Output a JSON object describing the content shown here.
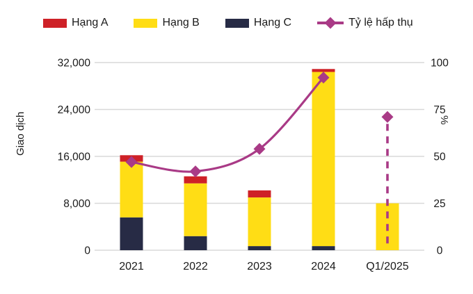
{
  "legend": {
    "items": [
      {
        "label": "Hạng A",
        "color": "#ce2127",
        "type": "box"
      },
      {
        "label": "Hạng B",
        "color": "#ffdd15",
        "type": "box"
      },
      {
        "label": "Hạng C",
        "color": "#272b45",
        "type": "box"
      },
      {
        "label": "Tỷ lệ hấp thụ",
        "color": "#a93a86",
        "type": "line-diamond"
      }
    ]
  },
  "chart_data": {
    "type": "bar",
    "subtype": "stacked-bars-with-percentage-line",
    "categories": [
      "2021",
      "2022",
      "2023",
      "2024",
      "Q1/2025"
    ],
    "bar_series": [
      {
        "name": "Hạng C",
        "color": "#272b45",
        "values": [
          5600,
          2400,
          700,
          700,
          0
        ]
      },
      {
        "name": "Hạng B",
        "color": "#ffdd15",
        "values": [
          9500,
          9000,
          8300,
          29700,
          8000
        ]
      },
      {
        "name": "Hạng A",
        "color": "#ce2127",
        "values": [
          1100,
          1200,
          1200,
          500,
          0
        ]
      }
    ],
    "bar_totals": [
      16200,
      12600,
      10200,
      30900,
      8000
    ],
    "line_series": {
      "name": "Tỷ lệ hấp thụ",
      "color": "#a93a86",
      "values": [
        47,
        42,
        54,
        92,
        71
      ],
      "last_point_dashed_drop": true
    },
    "left_axis": {
      "title": "Giao dịch",
      "tick_values": [
        0,
        8000,
        16000,
        24000,
        32000
      ],
      "tick_labels": [
        "0",
        "8,000",
        "16,000",
        "24,000",
        "32,000"
      ],
      "max": 32000
    },
    "right_axis": {
      "title": "%",
      "tick_values": [
        0,
        25,
        50,
        75,
        100
      ],
      "tick_labels": [
        "0",
        "25",
        "50",
        "75",
        "100"
      ],
      "max": 100
    },
    "grid": "horizontal",
    "grid_color": "#d8d8d8",
    "legend_position": "top"
  }
}
